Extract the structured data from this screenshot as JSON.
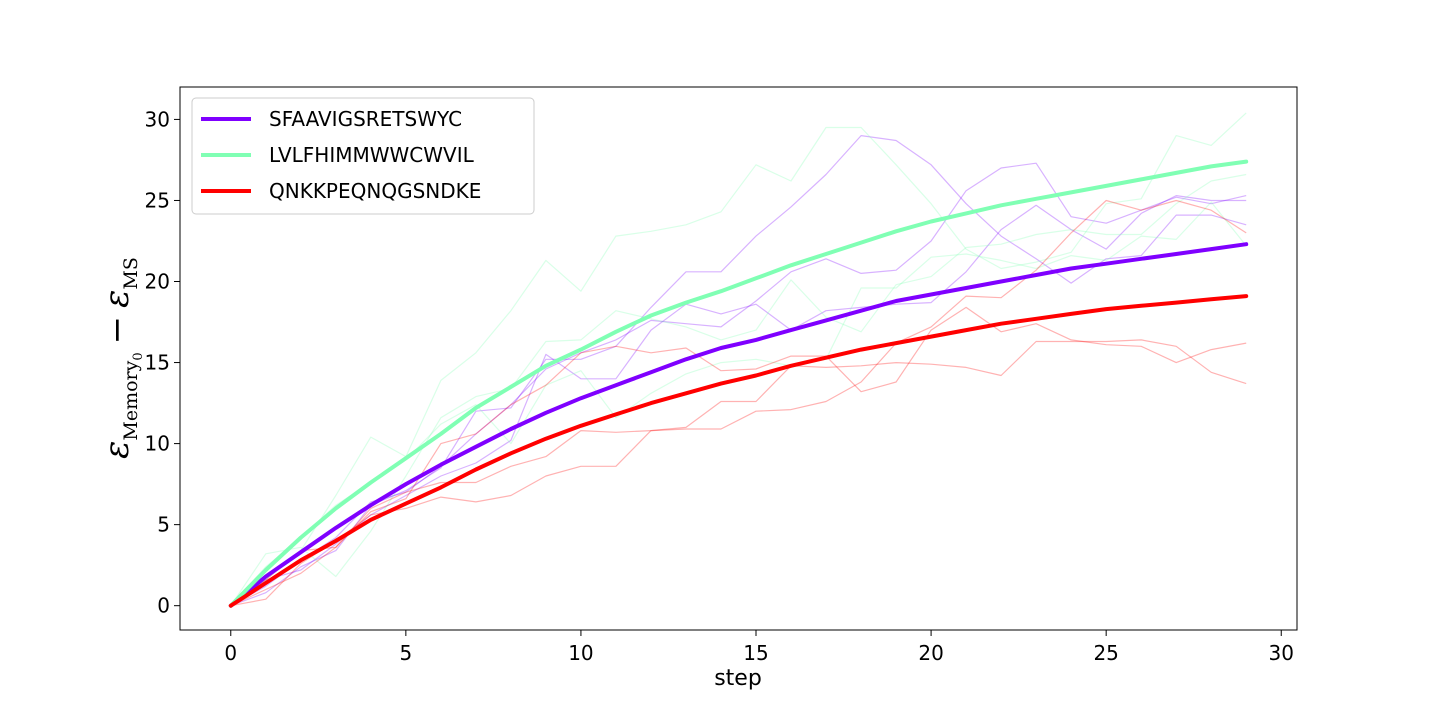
{
  "chart_data": {
    "type": "line",
    "xlabel": "step",
    "ylabel": {
      "eps": "ε",
      "sub1": "Memory",
      "sub1_sub": "0",
      "minus": "−",
      "sub2": "MS"
    },
    "xlim": [
      -1.45,
      30.45
    ],
    "ylim": [
      -1.5,
      32
    ],
    "xticks": [
      0,
      5,
      10,
      15,
      20,
      25,
      30
    ],
    "yticks": [
      0,
      5,
      10,
      15,
      20,
      25,
      30
    ],
    "grid": false,
    "legend_position": "upper-left",
    "x": [
      0,
      1,
      2,
      3,
      4,
      5,
      6,
      7,
      8,
      9,
      10,
      11,
      12,
      13,
      14,
      15,
      16,
      17,
      18,
      19,
      20,
      21,
      22,
      23,
      24,
      25,
      26,
      27,
      28,
      29
    ],
    "series": [
      {
        "name": "SFAAVIGSRETSWYC",
        "color": "#7f00ff",
        "mean": [
          0,
          1.8,
          3.3,
          4.8,
          6.2,
          7.5,
          8.7,
          9.8,
          10.9,
          11.9,
          12.8,
          13.6,
          14.4,
          15.2,
          15.9,
          16.4,
          17.0,
          17.6,
          18.2,
          18.8,
          19.2,
          19.6,
          20.0,
          20.4,
          20.8,
          21.1,
          21.4,
          21.7,
          22.0,
          22.3
        ],
        "runs": [
          [
            0,
            1.2,
            2.8,
            4.2,
            6.4,
            7.0,
            8.6,
            10.6,
            12.4,
            14.6,
            15.6,
            16.4,
            17.6,
            17.4,
            17.2,
            18.8,
            20.6,
            21.4,
            20.5,
            20.7,
            22.5,
            25.6,
            27.0,
            27.3,
            24.0,
            23.6,
            24.4,
            25.2,
            24.8,
            25.3
          ],
          [
            0,
            1.6,
            2.2,
            3.8,
            5.6,
            6.8,
            8.0,
            8.8,
            10.2,
            15.5,
            14.0,
            14.0,
            17.0,
            18.6,
            18.0,
            18.6,
            17.0,
            18.2,
            18.4,
            18.6,
            18.7,
            20.6,
            23.2,
            24.7,
            23.2,
            22.0,
            24.2,
            25.3,
            25.0,
            25.0
          ],
          [
            0,
            0.8,
            2.4,
            3.4,
            6.2,
            7.1,
            8.5,
            12.0,
            12.2,
            15.2,
            15.2,
            16.0,
            18.4,
            20.6,
            20.6,
            22.8,
            24.6,
            26.6,
            29.0,
            28.7,
            27.2,
            24.8,
            22.8,
            21.4,
            19.9,
            21.4,
            21.6,
            24.1,
            24.1,
            23.5
          ]
        ]
      },
      {
        "name": "LVLFHIMMWWCWVIL",
        "color": "#80ffb4",
        "mean": [
          0,
          2.2,
          4.2,
          6.0,
          7.6,
          9.1,
          10.6,
          12.2,
          13.5,
          14.8,
          15.8,
          16.9,
          17.9,
          18.7,
          19.4,
          20.2,
          21.0,
          21.7,
          22.4,
          23.1,
          23.7,
          24.2,
          24.7,
          25.1,
          25.5,
          25.9,
          26.3,
          26.7,
          27.1,
          27.4
        ],
        "runs": [
          [
            0,
            1.6,
            3.4,
            6.8,
            10.4,
            9.2,
            13.9,
            15.6,
            18.2,
            21.3,
            19.4,
            22.8,
            23.1,
            23.5,
            24.3,
            27.2,
            26.2,
            29.5,
            29.5,
            27.2,
            24.8,
            22.0,
            20.8,
            21.2,
            21.8,
            24.8,
            25.1,
            29.0,
            28.4,
            30.4
          ],
          [
            0,
            3.2,
            3.6,
            1.8,
            4.6,
            8.0,
            11.6,
            12.9,
            13.4,
            16.3,
            16.4,
            18.2,
            17.7,
            17.2,
            16.4,
            17.0,
            20.1,
            17.8,
            16.9,
            19.8,
            20.3,
            22.1,
            22.3,
            22.9,
            23.2,
            22.9,
            22.9,
            24.8,
            26.2,
            26.6
          ],
          [
            0,
            2.4,
            4.2,
            6.2,
            7.6,
            9.0,
            11.2,
            12.4,
            10.0,
            13.6,
            14.5,
            11.6,
            13.1,
            14.3,
            15.0,
            15.2,
            14.8,
            15.2,
            19.6,
            19.6,
            21.5,
            21.7,
            21.3,
            20.8,
            21.6,
            21.3,
            22.8,
            22.6,
            24.9,
            22.2
          ]
        ]
      },
      {
        "name": "QNKKPEQNQGSNDKE",
        "color": "#ff0000",
        "mean": [
          0,
          1.4,
          2.8,
          4.0,
          5.3,
          6.3,
          7.3,
          8.4,
          9.4,
          10.3,
          11.1,
          11.8,
          12.5,
          13.1,
          13.7,
          14.2,
          14.8,
          15.3,
          15.8,
          16.2,
          16.6,
          17.0,
          17.4,
          17.7,
          18.0,
          18.3,
          18.5,
          18.7,
          18.9,
          19.1
        ],
        "runs": [
          [
            0,
            1.6,
            3.4,
            3.6,
            5.8,
            6.6,
            10.0,
            10.6,
            12.4,
            13.6,
            15.6,
            16.0,
            15.6,
            15.9,
            14.5,
            14.6,
            15.4,
            15.4,
            13.2,
            13.8,
            17.0,
            18.4,
            16.9,
            17.4,
            16.4,
            16.1,
            16.0,
            15.0,
            15.8,
            16.2
          ],
          [
            0,
            0.4,
            2.6,
            4.0,
            5.6,
            6.0,
            6.7,
            6.4,
            6.8,
            8.0,
            8.6,
            8.6,
            10.8,
            11.0,
            12.6,
            12.6,
            14.8,
            14.7,
            14.8,
            15.0,
            14.9,
            14.7,
            14.2,
            16.3,
            16.3,
            16.3,
            16.4,
            16.0,
            14.4,
            13.7
          ],
          [
            0,
            1.0,
            2.0,
            3.6,
            6.0,
            7.0,
            7.6,
            7.6,
            8.6,
            9.2,
            10.8,
            10.7,
            10.8,
            10.9,
            10.9,
            12.0,
            12.1,
            12.6,
            13.8,
            16.2,
            17.2,
            19.1,
            19.0,
            20.7,
            23.0,
            25.0,
            24.4,
            25.0,
            24.4,
            23.0
          ]
        ]
      }
    ]
  }
}
